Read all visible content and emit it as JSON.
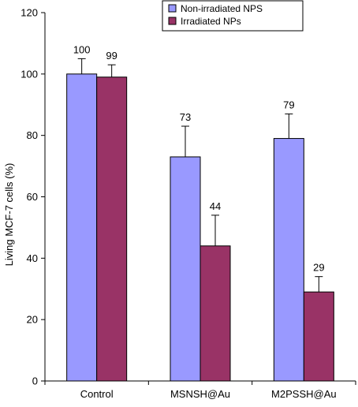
{
  "chart_data": {
    "type": "bar",
    "title": "",
    "xlabel": "",
    "ylabel": "Living MCF-7 cells (%)",
    "ylim": [
      0,
      120
    ],
    "yticks": [
      0,
      20,
      40,
      60,
      80,
      100,
      120
    ],
    "categories": [
      "Control",
      "MSNSH@Au",
      "M2PSSH@Au"
    ],
    "series": [
      {
        "name": "Non-irradiated NPS",
        "color": "#9999ff",
        "values": [
          100,
          73,
          79
        ],
        "errors": [
          5,
          10,
          8
        ],
        "labels": [
          "100",
          "73",
          "79"
        ]
      },
      {
        "name": "Irradiated NPs",
        "color": "#993366",
        "values": [
          99,
          44,
          29
        ],
        "errors": [
          4,
          10,
          5
        ],
        "labels": [
          "99",
          "44",
          "29"
        ]
      }
    ],
    "grid": false,
    "legend_position": "top-right",
    "error_bars": true
  }
}
